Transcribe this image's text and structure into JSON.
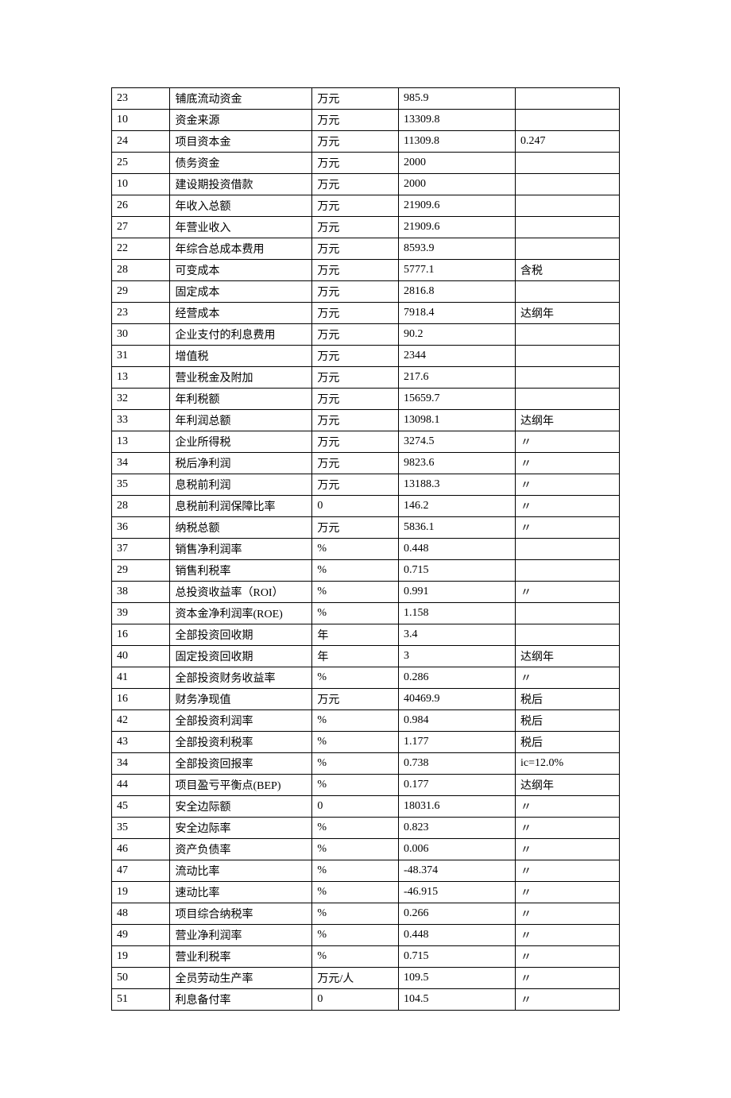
{
  "table": {
    "rows": [
      {
        "c1": "23",
        "c2": "铺底流动资金",
        "c3": "万元",
        "c4": "985.9",
        "c5": ""
      },
      {
        "c1": "10",
        "c2": "资金来源",
        "c3": "万元",
        "c4": "13309.8",
        "c5": ""
      },
      {
        "c1": "24",
        "c2": "项目资本金",
        "c3": "万元",
        "c4": "11309.8",
        "c5": "0.247"
      },
      {
        "c1": "25",
        "c2": "债务资金",
        "c3": "万元",
        "c4": "2000",
        "c5": ""
      },
      {
        "c1": "10",
        "c2": "建设期投资借款",
        "c3": "万元",
        "c4": "2000",
        "c5": ""
      },
      {
        "c1": "26",
        "c2": "年收入总额",
        "c3": "万元",
        "c4": "21909.6",
        "c5": ""
      },
      {
        "c1": "27",
        "c2": "年营业收入",
        "c3": "万元",
        "c4": "21909.6",
        "c5": ""
      },
      {
        "c1": "22",
        "c2": "年综合总成本费用",
        "c3": "万元",
        "c4": "8593.9",
        "c5": ""
      },
      {
        "c1": "28",
        "c2": "可变成本",
        "c3": "万元",
        "c4": "5777.1",
        "c5": "含税"
      },
      {
        "c1": "29",
        "c2": "固定成本",
        "c3": "万元",
        "c4": "2816.8",
        "c5": ""
      },
      {
        "c1": "23",
        "c2": "经营成本",
        "c3": "万元",
        "c4": "7918.4",
        "c5": "达纲年"
      },
      {
        "c1": "30",
        "c2": "企业支付的利息费用",
        "c3": "万元",
        "c4": "90.2",
        "c5": ""
      },
      {
        "c1": "31",
        "c2": "增值税",
        "c3": "万元",
        "c4": "2344",
        "c5": ""
      },
      {
        "c1": "13",
        "c2": "营业税金及附加",
        "c3": "万元",
        "c4": "217.6",
        "c5": ""
      },
      {
        "c1": "32",
        "c2": "年利税额",
        "c3": "万元",
        "c4": "15659.7",
        "c5": ""
      },
      {
        "c1": "33",
        "c2": "年利润总额",
        "c3": "万元",
        "c4": "13098.1",
        "c5": "达纲年"
      },
      {
        "c1": "13",
        "c2": "企业所得税",
        "c3": "万元",
        "c4": "3274.5",
        "c5": "〃"
      },
      {
        "c1": "34",
        "c2": "税后净利润",
        "c3": "万元",
        "c4": "9823.6",
        "c5": "〃"
      },
      {
        "c1": "35",
        "c2": "息税前利润",
        "c3": "万元",
        "c4": "13188.3",
        "c5": "〃"
      },
      {
        "c1": "28",
        "c2": "息税前利润保障比率",
        "c3": "0",
        "c4": "146.2",
        "c5": "〃"
      },
      {
        "c1": "36",
        "c2": "纳税总额",
        "c3": "万元",
        "c4": "5836.1",
        "c5": "〃"
      },
      {
        "c1": "37",
        "c2": "销售净利润率",
        "c3": "%",
        "c4": "0.448",
        "c5": ""
      },
      {
        "c1": "29",
        "c2": "销售利税率",
        "c3": "%",
        "c4": "0.715",
        "c5": ""
      },
      {
        "c1": "38",
        "c2": "总投资收益率（ROI）",
        "c3": "%",
        "c4": "0.991",
        "c5": "〃"
      },
      {
        "c1": "39",
        "c2": "资本金净利润率(ROE)",
        "c3": "%",
        "c4": "1.158",
        "c5": ""
      },
      {
        "c1": "16",
        "c2": "全部投资回收期",
        "c3": "年",
        "c4": "3.4",
        "c5": ""
      },
      {
        "c1": "40",
        "c2": "固定投资回收期",
        "c3": "年",
        "c4": "3",
        "c5": "达纲年"
      },
      {
        "c1": "41",
        "c2": "全部投资财务收益率",
        "c3": "%",
        "c4": "0.286",
        "c5": "〃"
      },
      {
        "c1": "16",
        "c2": "财务净现值",
        "c3": "万元",
        "c4": "40469.9",
        "c5": "税后"
      },
      {
        "c1": "42",
        "c2": "全部投资利润率",
        "c3": "%",
        "c4": "0.984",
        "c5": "税后"
      },
      {
        "c1": "43",
        "c2": "全部投资利税率",
        "c3": "%",
        "c4": "1.177",
        "c5": "税后"
      },
      {
        "c1": "34",
        "c2": "全部投资回报率",
        "c3": "%",
        "c4": "0.738",
        "c5": "ic=12.0%"
      },
      {
        "c1": "44",
        "c2": "项目盈亏平衡点(BEP)",
        "c3": "%",
        "c4": "0.177",
        "c5": "达纲年"
      },
      {
        "c1": "45",
        "c2": "安全边际额",
        "c3": "0",
        "c4": "18031.6",
        "c5": "〃"
      },
      {
        "c1": "35",
        "c2": "安全边际率",
        "c3": "%",
        "c4": "0.823",
        "c5": "〃"
      },
      {
        "c1": "46",
        "c2": "资产负债率",
        "c3": "%",
        "c4": "0.006",
        "c5": "〃"
      },
      {
        "c1": "47",
        "c2": "流动比率",
        "c3": "%",
        "c4": "-48.374",
        "c5": "〃"
      },
      {
        "c1": "19",
        "c2": "速动比率",
        "c3": "%",
        "c4": "-46.915",
        "c5": "〃"
      },
      {
        "c1": "48",
        "c2": "项目综合纳税率",
        "c3": "%",
        "c4": "0.266",
        "c5": "〃"
      },
      {
        "c1": "49",
        "c2": "营业净利润率",
        "c3": "%",
        "c4": "0.448",
        "c5": "〃"
      },
      {
        "c1": "19",
        "c2": "营业利税率",
        "c3": "%",
        "c4": "0.715",
        "c5": "〃"
      },
      {
        "c1": "50",
        "c2": "全员劳动生产率",
        "c3": "万元/人",
        "c4": "109.5",
        "c5": "〃"
      },
      {
        "c1": "51",
        "c2": "利息备付率",
        "c3": "0",
        "c4": "104.5",
        "c5": "〃"
      }
    ]
  }
}
